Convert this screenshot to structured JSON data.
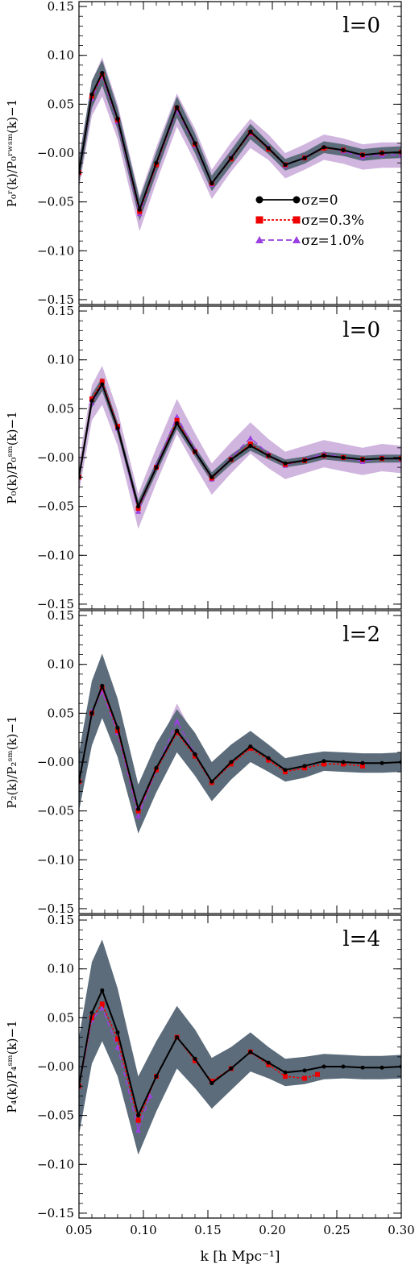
{
  "figure": {
    "xlabel": "k [h Mpc⁻¹]",
    "legend": {
      "placement": "center-right of top panel",
      "entries": [
        {
          "label": "σz=0",
          "color": "#000000",
          "marker": "circle",
          "line": "solid"
        },
        {
          "label": "σz=0.3%",
          "color": "#ee0000",
          "marker": "square",
          "line": "dotted"
        },
        {
          "label": "σz=1.0%",
          "color": "#9b40e0",
          "marker": "triangle",
          "line": "dashed"
        }
      ]
    },
    "colors": {
      "black_band": "#5c6c7b",
      "purple_band": "#c8a8d8",
      "black": "#000000",
      "red": "#ee0000",
      "purple": "#9b40e0"
    }
  },
  "chart_data": [
    {
      "type": "line",
      "panel_label": "l=0",
      "ylabel": "P₀ʳ(k)/P₀ʳʷˢᵐ(k)−1",
      "xlim": [
        0.05,
        0.3
      ],
      "ylim": [
        -0.155,
        0.155
      ],
      "xticks": [
        "0.05",
        "0.10",
        "0.15",
        "0.20",
        "0.25",
        "0.30"
      ],
      "yticks": [
        "−0.15",
        "−0.10",
        "−0.05",
        "−0.00",
        "0.05",
        "0.10",
        "0.15"
      ],
      "grid": false,
      "series": [
        {
          "name": "σz=0",
          "color": "#000000",
          "x": [
            0.05,
            0.06,
            0.068,
            0.08,
            0.097,
            0.11,
            0.126,
            0.14,
            0.153,
            0.168,
            0.183,
            0.197,
            0.21,
            0.225,
            0.24,
            0.255,
            0.27,
            0.285,
            0.3
          ],
          "y": [
            -0.02,
            0.06,
            0.082,
            0.035,
            -0.058,
            -0.01,
            0.047,
            0.01,
            -0.031,
            -0.005,
            0.022,
            0.005,
            -0.012,
            -0.005,
            0.006,
            0.003,
            -0.002,
            0.0,
            0.001
          ],
          "band": [
            0.012,
            0.014,
            0.013,
            0.011,
            0.011,
            0.011,
            0.011,
            0.01,
            0.008,
            0.008,
            0.008,
            0.006,
            0.006,
            0.006,
            0.006,
            0.006,
            0.006,
            0.006,
            0.006
          ]
        },
        {
          "name": "σz=0.3%",
          "color": "#ee0000",
          "x": [
            0.05,
            0.06,
            0.068,
            0.08,
            0.097,
            0.11,
            0.126,
            0.14,
            0.153,
            0.168,
            0.183,
            0.197,
            0.21,
            0.225,
            0.24,
            0.255,
            0.27,
            0.285,
            0.3
          ],
          "y": [
            -0.02,
            0.058,
            0.08,
            0.034,
            -0.06,
            -0.012,
            0.046,
            0.009,
            -0.031,
            -0.006,
            0.021,
            0.004,
            -0.012,
            -0.005,
            0.005,
            0.003,
            -0.002,
            0.0,
            0.001
          ]
        },
        {
          "name": "σz=1.0%",
          "color": "#9b40e0",
          "x": [
            0.05,
            0.06,
            0.068,
            0.08,
            0.097,
            0.11,
            0.126,
            0.14,
            0.153,
            0.168,
            0.183,
            0.197,
            0.21,
            0.225,
            0.24,
            0.255,
            0.27,
            0.285,
            0.3
          ],
          "y": [
            -0.02,
            0.056,
            0.078,
            0.032,
            -0.062,
            -0.012,
            0.044,
            0.008,
            -0.032,
            -0.004,
            0.02,
            0.006,
            -0.013,
            -0.004,
            0.006,
            0.002,
            -0.004,
            -0.002,
            -0.002
          ],
          "band": [
            0.016,
            0.018,
            0.02,
            0.018,
            0.018,
            0.018,
            0.017,
            0.017,
            0.015,
            0.015,
            0.015,
            0.013,
            0.013,
            0.013,
            0.013,
            0.013,
            0.013,
            0.013,
            0.013
          ]
        }
      ]
    },
    {
      "type": "line",
      "panel_label": "l=0",
      "ylabel": "P₀(k)/P₀ˢᵐ(k)−1",
      "xlim": [
        0.05,
        0.3
      ],
      "ylim": [
        -0.155,
        0.155
      ],
      "xticks": [
        "0.05",
        "0.10",
        "0.15",
        "0.20",
        "0.25",
        "0.30"
      ],
      "yticks": [
        "−0.15",
        "−0.10",
        "−0.05",
        "−0.00",
        "0.05",
        "0.10",
        "0.15"
      ],
      "grid": false,
      "series": [
        {
          "name": "σz=0",
          "color": "#000000",
          "x": [
            0.05,
            0.06,
            0.068,
            0.08,
            0.096,
            0.11,
            0.126,
            0.14,
            0.153,
            0.168,
            0.183,
            0.197,
            0.21,
            0.225,
            0.24,
            0.255,
            0.27,
            0.285,
            0.3
          ],
          "y": [
            -0.02,
            0.058,
            0.075,
            0.03,
            -0.05,
            -0.01,
            0.035,
            0.006,
            -0.02,
            -0.002,
            0.012,
            0.002,
            -0.006,
            -0.003,
            0.002,
            0.0,
            -0.002,
            -0.001,
            -0.001
          ],
          "band": [
            0.006,
            0.007,
            0.007,
            0.006,
            0.006,
            0.006,
            0.006,
            0.005,
            0.005,
            0.005,
            0.005,
            0.004,
            0.004,
            0.004,
            0.004,
            0.004,
            0.004,
            0.004,
            0.004
          ]
        },
        {
          "name": "σz=0.3%",
          "color": "#ee0000",
          "x": [
            0.05,
            0.06,
            0.068,
            0.08,
            0.096,
            0.11,
            0.126,
            0.14,
            0.153,
            0.168,
            0.183,
            0.197,
            0.21,
            0.225,
            0.24,
            0.255,
            0.27,
            0.285,
            0.3
          ],
          "y": [
            -0.02,
            0.06,
            0.078,
            0.032,
            -0.052,
            -0.01,
            0.038,
            0.006,
            -0.021,
            -0.002,
            0.014,
            0.002,
            -0.007,
            -0.003,
            0.002,
            0.0,
            -0.002,
            -0.001,
            -0.001
          ]
        },
        {
          "name": "σz=1.0%",
          "color": "#9b40e0",
          "x": [
            0.05,
            0.06,
            0.068,
            0.08,
            0.096,
            0.11,
            0.126,
            0.14,
            0.153,
            0.168,
            0.183,
            0.197,
            0.21,
            0.225,
            0.24,
            0.255,
            0.27,
            0.285,
            0.3
          ],
          "y": [
            -0.02,
            0.056,
            0.074,
            0.03,
            -0.055,
            -0.008,
            0.042,
            0.008,
            -0.022,
            0.0,
            0.02,
            0.004,
            -0.008,
            -0.002,
            0.004,
            0.0,
            -0.004,
            0.0,
            -0.002
          ],
          "band": [
            0.016,
            0.018,
            0.02,
            0.018,
            0.018,
            0.018,
            0.018,
            0.017,
            0.016,
            0.016,
            0.016,
            0.015,
            0.014,
            0.014,
            0.014,
            0.014,
            0.014,
            0.014,
            0.014
          ]
        }
      ]
    },
    {
      "type": "line",
      "panel_label": "l=2",
      "ylabel": "P₂(k)/P₂ˢᵐ(k)−1",
      "xlim": [
        0.05,
        0.3
      ],
      "ylim": [
        -0.155,
        0.155
      ],
      "xticks": [
        "0.05",
        "0.10",
        "0.15",
        "0.20",
        "0.25",
        "0.30"
      ],
      "yticks": [
        "−0.15",
        "−0.10",
        "−0.05",
        "−0.00",
        "0.05",
        "0.10",
        "0.15"
      ],
      "grid": false,
      "series": [
        {
          "name": "σz=0",
          "color": "#000000",
          "x": [
            0.05,
            0.06,
            0.068,
            0.08,
            0.096,
            0.11,
            0.126,
            0.14,
            0.153,
            0.168,
            0.183,
            0.197,
            0.21,
            0.225,
            0.24,
            0.255,
            0.27,
            0.285,
            0.3
          ],
          "y": [
            -0.02,
            0.05,
            0.078,
            0.035,
            -0.048,
            -0.006,
            0.032,
            0.008,
            -0.02,
            0.0,
            0.016,
            0.004,
            -0.008,
            -0.004,
            0.001,
            0.0,
            -0.001,
            -0.001,
            0.0
          ],
          "band": [
            0.03,
            0.033,
            0.033,
            0.03,
            0.025,
            0.025,
            0.022,
            0.022,
            0.02,
            0.018,
            0.016,
            0.014,
            0.012,
            0.012,
            0.01,
            0.01,
            0.01,
            0.01,
            0.01
          ]
        },
        {
          "name": "σz=0.3%",
          "color": "#ee0000",
          "x": [
            0.05,
            0.06,
            0.068,
            0.08,
            0.096,
            0.11,
            0.126,
            0.14,
            0.153,
            0.168,
            0.183,
            0.197,
            0.21,
            0.225,
            0.24,
            0.255,
            0.27
          ],
          "y": [
            -0.02,
            0.05,
            0.076,
            0.032,
            -0.05,
            -0.008,
            0.03,
            0.006,
            -0.021,
            -0.002,
            0.014,
            0.002,
            -0.01,
            -0.006,
            -0.002,
            -0.002,
            -0.004
          ]
        },
        {
          "name": "σz=1.0%",
          "color": "#9b40e0",
          "x": [
            0.05,
            0.06,
            0.068,
            0.08,
            0.096,
            0.11,
            0.126,
            0.14
          ],
          "y": [
            -0.02,
            0.052,
            0.072,
            0.03,
            -0.055,
            -0.008,
            0.042,
            0.008
          ],
          "band": [
            0.016,
            0.018,
            0.02,
            0.018,
            0.018,
            0.018,
            0.018,
            0.017
          ]
        }
      ]
    },
    {
      "type": "line",
      "panel_label": "l=4",
      "ylabel": "P₄(k)/P₄ˢᵐ(k)−1",
      "xlim": [
        0.05,
        0.3
      ],
      "ylim": [
        -0.155,
        0.155
      ],
      "xticks": [
        "0.05",
        "0.10",
        "0.15",
        "0.20",
        "0.25",
        "0.30"
      ],
      "yticks": [
        "−0.15",
        "−0.10",
        "−0.05",
        "−0.00",
        "0.05",
        "0.10",
        "0.15"
      ],
      "grid": false,
      "series": [
        {
          "name": "σz=0",
          "color": "#000000",
          "x": [
            0.05,
            0.06,
            0.068,
            0.08,
            0.096,
            0.11,
            0.126,
            0.14,
            0.153,
            0.168,
            0.183,
            0.197,
            0.21,
            0.225,
            0.24,
            0.255,
            0.27,
            0.285,
            0.3
          ],
          "y": [
            -0.02,
            0.055,
            0.078,
            0.035,
            -0.05,
            -0.01,
            0.03,
            0.008,
            -0.017,
            -0.002,
            0.015,
            0.004,
            -0.006,
            -0.004,
            0.0,
            0.0,
            -0.001,
            -0.001,
            0.0
          ],
          "band": [
            0.05,
            0.052,
            0.052,
            0.045,
            0.04,
            0.036,
            0.032,
            0.03,
            0.026,
            0.022,
            0.02,
            0.016,
            0.014,
            0.014,
            0.013,
            0.012,
            0.012,
            0.012,
            0.012
          ]
        },
        {
          "name": "σz=0.3%",
          "color": "#ee0000",
          "x": [
            0.05,
            0.06,
            0.068,
            0.08,
            0.096,
            0.11,
            0.126,
            0.14,
            0.153,
            0.168,
            0.183,
            0.197,
            0.21,
            0.225,
            0.235
          ],
          "y": [
            -0.02,
            0.05,
            0.064,
            0.028,
            -0.055,
            -0.01,
            0.03,
            0.006,
            -0.015,
            -0.002,
            0.015,
            0.002,
            -0.01,
            -0.012,
            -0.008
          ]
        },
        {
          "name": "σz=1.0%",
          "color": "#9b40e0",
          "x": [
            0.05,
            0.06,
            0.068,
            0.08,
            0.096,
            0.105
          ],
          "y": [
            -0.02,
            0.048,
            0.06,
            0.02,
            -0.065,
            -0.03
          ],
          "band": [
            0.018,
            0.02,
            0.022,
            0.02,
            0.02,
            0.02
          ]
        }
      ]
    }
  ]
}
